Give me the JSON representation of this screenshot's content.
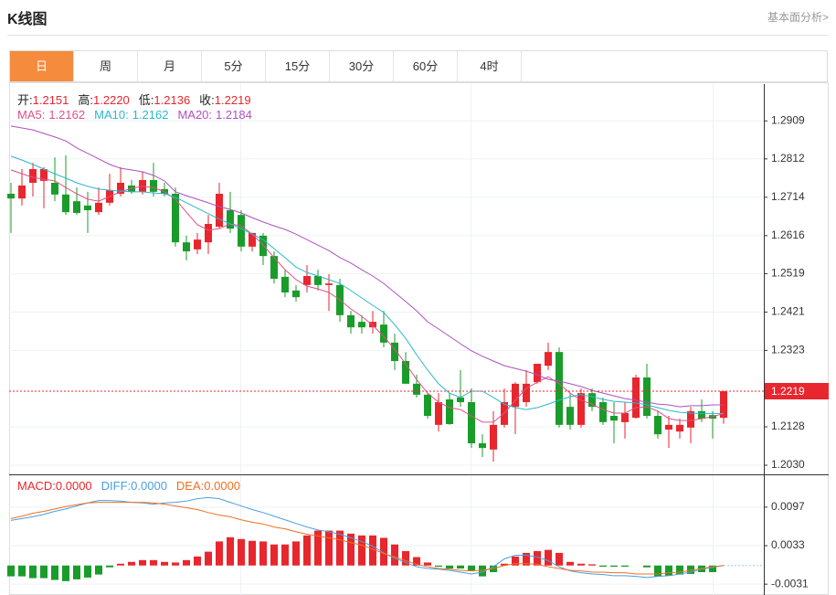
{
  "header": {
    "title": "K线图",
    "link": "基本面分析>"
  },
  "tabs": [
    "日",
    "周",
    "月",
    "5分",
    "15分",
    "30分",
    "60分",
    "4时"
  ],
  "active_tab": 0,
  "chart_data": [
    {
      "type": "candlestick",
      "readout": {
        "labels": [
          "开:",
          "高:",
          "低:",
          "收:"
        ],
        "value_labels": [
          "1.2151",
          "1.2220",
          "1.2136",
          "1.2219"
        ]
      },
      "up_color": "#e8262d",
      "down_color": "#1a9c2a",
      "open": [
        1.2723,
        1.2711,
        1.2751,
        1.2756,
        1.2751,
        1.2721,
        1.2704,
        1.2693,
        1.2676,
        1.27,
        1.2723,
        1.2744,
        1.2728,
        1.2758,
        1.2735,
        1.2723,
        1.2599,
        1.2581,
        1.2599,
        1.2639,
        1.2681,
        1.2669,
        1.2588,
        1.2616,
        1.2564,
        1.2511,
        1.2476,
        1.249,
        1.2513,
        1.249,
        1.249,
        1.2413,
        1.2396,
        1.2382,
        1.2389,
        1.2343,
        1.2296,
        1.2238,
        1.221,
        1.2133,
        1.2198,
        1.2203,
        1.2191,
        1.2086,
        1.207,
        1.2133,
        1.2179,
        1.2191,
        1.2242,
        1.2284,
        1.2319,
        1.2179,
        1.2133,
        1.2214,
        1.2191,
        1.2156,
        1.214,
        1.2151,
        1.2254,
        1.2156,
        1.2121,
        1.2116,
        1.2126,
        1.2168,
        1.2158,
        1.2151
      ],
      "high": [
        1.2751,
        1.2786,
        1.2802,
        1.2791,
        1.2816,
        1.2821,
        1.2739,
        1.2728,
        1.2739,
        1.2774,
        1.2791,
        1.2758,
        1.2779,
        1.2802,
        1.2751,
        1.2739,
        1.2616,
        1.2623,
        1.2669,
        1.2751,
        1.2728,
        1.2681,
        1.2623,
        1.2623,
        1.2576,
        1.2529,
        1.249,
        1.2541,
        1.2529,
        1.2518,
        1.2506,
        1.2424,
        1.2413,
        1.2424,
        1.2424,
        1.2366,
        1.2319,
        1.2261,
        1.2214,
        1.2214,
        1.2214,
        1.2273,
        1.2226,
        1.2109,
        1.2168,
        1.2226,
        1.2242,
        1.2273,
        1.2289,
        1.2343,
        1.2331,
        1.2214,
        1.2226,
        1.2226,
        1.2203,
        1.2191,
        1.2191,
        1.2261,
        1.2289,
        1.2168,
        1.2156,
        1.2149,
        1.2179,
        1.2198,
        1.2168,
        1.222
      ],
      "low": [
        1.2623,
        1.2693,
        1.2716,
        1.2686,
        1.2704,
        1.2669,
        1.2669,
        1.2623,
        1.2669,
        1.2693,
        1.2716,
        1.2723,
        1.2721,
        1.2716,
        1.2716,
        1.2588,
        1.2553,
        1.2569,
        1.2569,
        1.2634,
        1.2623,
        1.2576,
        1.2576,
        1.2541,
        1.2494,
        1.2459,
        1.2448,
        1.2471,
        1.2476,
        1.2424,
        1.2396,
        1.2366,
        1.2366,
        1.2366,
        1.2331,
        1.2273,
        1.2238,
        1.2203,
        1.2149,
        1.2116,
        1.2133,
        1.2179,
        1.2074,
        1.2051,
        1.2039,
        1.2126,
        1.2109,
        1.2179,
        1.2238,
        1.2273,
        1.2126,
        1.2121,
        1.2126,
        1.2168,
        1.2133,
        1.2086,
        1.2098,
        1.2149,
        1.2149,
        1.2098,
        1.2074,
        1.2098,
        1.2086,
        1.214,
        1.2098,
        1.2136
      ],
      "close": [
        1.2711,
        1.2744,
        1.2786,
        1.2786,
        1.2721,
        1.2676,
        1.2674,
        1.2681,
        1.27,
        1.2732,
        1.2751,
        1.2728,
        1.2758,
        1.2728,
        1.2723,
        1.2599,
        1.2576,
        1.2606,
        1.2646,
        1.2723,
        1.2634,
        1.2588,
        1.2623,
        1.2564,
        1.2506,
        1.2471,
        1.2459,
        1.2513,
        1.249,
        1.2494,
        1.2413,
        1.2382,
        1.2382,
        1.2396,
        1.2343,
        1.2296,
        1.2238,
        1.221,
        1.2156,
        1.2191,
        1.2135,
        1.2191,
        1.2086,
        1.2074,
        1.2133,
        1.2191,
        1.2238,
        1.2238,
        1.2289,
        1.2319,
        1.2133,
        1.2133,
        1.2214,
        1.2179,
        1.214,
        1.2144,
        1.2163,
        1.2254,
        1.2156,
        1.2109,
        1.2133,
        1.2133,
        1.2168,
        1.2149,
        1.2149,
        1.2219
      ],
      "series": [
        {
          "name": "MA5:",
          "color": "#e0508a",
          "values": [
            1.2784,
            1.2774,
            1.2765,
            1.276,
            1.2756,
            1.2739,
            1.2723,
            1.2709,
            1.2704,
            1.2716,
            1.2728,
            1.2737,
            1.2742,
            1.2739,
            1.2728,
            1.2709,
            1.2676,
            1.2644,
            1.263,
            1.2634,
            1.2646,
            1.2641,
            1.262,
            1.2592,
            1.256,
            1.2529,
            1.2504,
            1.2487,
            1.248,
            1.2471,
            1.2452,
            1.2429,
            1.241,
            1.2387,
            1.2359,
            1.2326,
            1.2289,
            1.2249,
            1.2214,
            1.2191,
            1.2177,
            1.2172,
            1.2156,
            1.214,
            1.214,
            1.2163,
            1.2196,
            1.2226,
            1.2242,
            1.2256,
            1.2238,
            1.2214,
            1.2196,
            1.2186,
            1.2172,
            1.2163,
            1.2163,
            1.2177,
            1.2179,
            1.2168,
            1.2149,
            1.2144,
            1.2144,
            1.2149,
            1.2154,
            1.2162
          ]
        },
        {
          "name": "MA10:",
          "color": "#2ab8cc",
          "values": [
            1.2819,
            1.2809,
            1.2798,
            1.2786,
            1.2774,
            1.2763,
            1.2751,
            1.2742,
            1.2735,
            1.2732,
            1.273,
            1.2728,
            1.2728,
            1.2725,
            1.2723,
            1.2714,
            1.27,
            1.2686,
            1.2672,
            1.2658,
            1.2646,
            1.2634,
            1.262,
            1.2606,
            1.2583,
            1.256,
            1.2536,
            1.2522,
            1.2513,
            1.2504,
            1.2494,
            1.2476,
            1.2457,
            1.2438,
            1.242,
            1.2389,
            1.2354,
            1.2312,
            1.2273,
            1.2238,
            1.2214,
            1.2203,
            1.2219,
            1.2219,
            1.2203,
            1.2186,
            1.2177,
            1.2172,
            1.2177,
            1.2186,
            1.2196,
            1.2205,
            1.221,
            1.2205,
            1.2198,
            1.2193,
            1.2191,
            1.2189,
            1.2184,
            1.2177,
            1.217,
            1.2165,
            1.2163,
            1.2162,
            1.2162,
            1.2162
          ]
        },
        {
          "name": "MA20:",
          "color": "#b050c0",
          "values": [
            1.2896,
            1.2891,
            1.2886,
            1.2877,
            1.2868,
            1.2858,
            1.284,
            1.2826,
            1.2812,
            1.2798,
            1.2788,
            1.2784,
            1.2779,
            1.277,
            1.2756,
            1.2728,
            1.2718,
            1.2709,
            1.27,
            1.269,
            1.2683,
            1.2674,
            1.2662,
            1.2651,
            1.2641,
            1.2632,
            1.262,
            1.2606,
            1.2592,
            1.2578,
            1.256,
            1.2546,
            1.2529,
            1.2513,
            1.2494,
            1.2471,
            1.2448,
            1.2424,
            1.2396,
            1.2378,
            1.2359,
            1.234,
            1.2322,
            1.2308,
            1.2296,
            1.2284,
            1.2277,
            1.227,
            1.2261,
            1.2249,
            1.2245,
            1.2238,
            1.2231,
            1.2221,
            1.2214,
            1.2207,
            1.22,
            1.2196,
            1.2191,
            1.2186,
            1.2184,
            1.2179,
            1.2182,
            1.2182,
            1.2184,
            1.2184
          ]
        }
      ],
      "ylim": [
        1.2009,
        1.3003
      ],
      "yticks": [
        1.2909,
        1.2812,
        1.2714,
        1.2616,
        1.2519,
        1.2421,
        1.2323,
        1.2128,
        {
          "value": 1.203,
          "label": "1.2030"
        }
      ],
      "grid": true
    },
    {
      "type": "macd",
      "up_color": "#e8262d",
      "down_color": "#1a9c2a",
      "series": [
        {
          "name": "MACD:",
          "color": "#e8262d",
          "kind": "bar",
          "last_label": "0.0000",
          "values": [
            -0.0018,
            -0.0018,
            -0.0021,
            -0.0021,
            -0.0024,
            -0.0026,
            -0.0023,
            -0.002,
            -0.0015,
            -0.0003,
            0.0003,
            0.0006,
            0.0009,
            0.0009,
            0.0006,
            0.0005,
            0.0009,
            0.0015,
            0.0023,
            0.004,
            0.0047,
            0.0044,
            0.0041,
            0.004,
            0.0035,
            0.0035,
            0.004,
            0.005,
            0.0058,
            0.0058,
            0.0058,
            0.0053,
            0.005,
            0.005,
            0.0046,
            0.0035,
            0.0024,
            0.0014,
            0.0005,
            -0.0002,
            -0.0005,
            -0.0005,
            -0.0009,
            -0.0018,
            -0.0011,
            0.0003,
            0.0015,
            0.0021,
            0.0024,
            0.0026,
            0.0021,
            0.0006,
            0.0003,
            0.0002,
            -0.0002,
            -0.0002,
            -0.0002,
            0,
            -0.0003,
            -0.0018,
            -0.0017,
            -0.0015,
            -0.0014,
            -0.0011,
            -0.0011,
            0
          ]
        },
        {
          "name": "DIFF:",
          "color": "#4a9fe0",
          "kind": "line",
          "last_label": "0.0000",
          "values": [
            0.0075,
            0.0078,
            0.0081,
            0.0085,
            0.009,
            0.0094,
            0.0099,
            0.0104,
            0.0108,
            0.0108,
            0.0107,
            0.0105,
            0.0104,
            0.0102,
            0.0104,
            0.0105,
            0.0107,
            0.0111,
            0.0113,
            0.0111,
            0.0105,
            0.0099,
            0.0093,
            0.0088,
            0.0082,
            0.0076,
            0.007,
            0.0064,
            0.0059,
            0.0056,
            0.0052,
            0.0046,
            0.004,
            0.0032,
            0.0021,
            0.0012,
            0.0005,
            -0.0002,
            -0.0005,
            -0.0006,
            -0.0008,
            -0.0011,
            -0.0014,
            -0.0011,
            -0.0002,
            0.0011,
            0.0017,
            0.0017,
            0.0014,
            0.0008,
            -0.0002,
            -0.0009,
            -0.0012,
            -0.0014,
            -0.0015,
            -0.0017,
            -0.0017,
            -0.0018,
            -0.002,
            -0.0018,
            -0.0017,
            -0.0014,
            -0.0011,
            -0.0006,
            -0.0003,
            0
          ]
        },
        {
          "name": "DEA:",
          "color": "#f07020",
          "kind": "line",
          "last_label": "0.0000",
          "values": [
            0.0078,
            0.0082,
            0.0087,
            0.009,
            0.0094,
            0.0098,
            0.0101,
            0.0104,
            0.0105,
            0.0105,
            0.0105,
            0.0105,
            0.0105,
            0.0104,
            0.0102,
            0.0099,
            0.0096,
            0.0093,
            0.0088,
            0.0084,
            0.0081,
            0.0076,
            0.0072,
            0.0069,
            0.0064,
            0.0061,
            0.0056,
            0.0052,
            0.0049,
            0.0046,
            0.0043,
            0.0038,
            0.0034,
            0.0027,
            0.002,
            0.0014,
            0.0008,
            0.0002,
            -0.0002,
            -0.0005,
            -0.0006,
            -0.0008,
            -0.0009,
            -0.0008,
            -0.0005,
            0,
            0.0003,
            0.0003,
            0.0002,
            -0.0002,
            -0.0005,
            -0.0008,
            -0.0009,
            -0.0011,
            -0.0011,
            -0.0012,
            -0.0012,
            -0.0014,
            -0.0014,
            -0.0014,
            -0.0012,
            -0.0011,
            -0.0008,
            -0.0005,
            -0.0002,
            0
          ]
        }
      ],
      "ylim": [
        -0.0049,
        0.015
      ],
      "yticks": [
        0.0097,
        0.0033,
        -0.0031
      ]
    }
  ]
}
